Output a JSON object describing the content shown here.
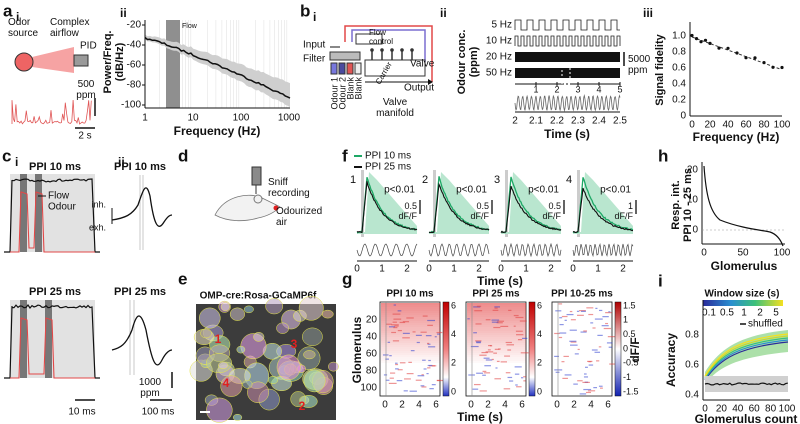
{
  "a": {
    "label": "a",
    "i": {
      "label": "i",
      "odor_source": "Odor source",
      "airflow": "Complex airflow",
      "pid": "PID",
      "scale_conc": "500 ppm",
      "scale_time": "2 s"
    },
    "ii": {
      "label": "ii",
      "y_axis": "Power/Freq. (dB/Hz)",
      "x_axis": "Frequency (Hz)",
      "yticks": [
        "-20",
        "-40",
        "-60",
        "-80",
        "-100"
      ],
      "xticks": [
        "1",
        "10",
        "100",
        "1000"
      ],
      "annotation": "Flow"
    }
  },
  "b": {
    "label": "b",
    "i": {
      "label": "i",
      "input": "Input",
      "filter": "Filter",
      "flow_control": "Flow control",
      "odours": [
        "Odour 1",
        "Odour 2",
        "Blank",
        "Blank"
      ],
      "carrier": "Carrier",
      "valve": "Valve",
      "output": "Output",
      "manifold": "Valve manifold"
    },
    "ii": {
      "label": "ii",
      "y_axis": "Odour conc. (ppm)",
      "rows": [
        "5 Hz",
        "10 Hz",
        "20 Hz",
        "50 Hz"
      ],
      "scale": "5000 ppm",
      "top_ticks": [
        "1",
        "2",
        "3",
        "4",
        "5"
      ],
      "xticks": [
        "2",
        "2.1",
        "2.2",
        "2.3",
        "2.4",
        "2.5"
      ],
      "x_axis": "Time (s)"
    },
    "iii": {
      "label": "iii",
      "y_axis": "Signal fidelity",
      "yticks": [
        "1.0",
        "0.8",
        "0.6",
        "0.4",
        "0.2",
        "0"
      ],
      "xticks": [
        "0",
        "20",
        "40",
        "60",
        "80",
        "100"
      ],
      "x_axis": "Frequency (Hz)"
    }
  },
  "c": {
    "label": "c",
    "i": {
      "label": "i",
      "top_title": "PPI 10 ms",
      "flow": "Flow",
      "odour": "Odour",
      "bottom_title": "PPI 25 ms",
      "scale_time": "10 ms"
    },
    "ii": {
      "label": "ii",
      "top_title": "PPI 10 ms",
      "inh": "inh.",
      "exh": "exh.",
      "bottom_title": "PPI 25 ms",
      "scale_conc": "1000 ppm",
      "scale_time": "100 ms"
    }
  },
  "d": {
    "label": "d",
    "sniff": "Sniff recording",
    "air": "Odourized air"
  },
  "e": {
    "label": "e",
    "title": "OMP-cre:Rosa-GCaMP6f",
    "rois": [
      "1",
      "2",
      "3",
      "4"
    ]
  },
  "f": {
    "label": "f",
    "legend": [
      "PPI 10 ms",
      "PPI 25 ms"
    ],
    "x_axis": "Time (s)",
    "plots": [
      {
        "number": "1",
        "p": "p<0.01",
        "scale": "0.5 dF/F",
        "xticks": [
          "0",
          "1",
          "2"
        ]
      },
      {
        "number": "2",
        "p": "p<0.01",
        "scale": "0.5 dF/F",
        "xticks": [
          "0",
          "1",
          "2"
        ]
      },
      {
        "number": "3",
        "p": "p<0.01",
        "scale": "0.5 dF/F",
        "xticks": [
          "0",
          "1",
          "2"
        ]
      },
      {
        "number": "4",
        "p": "p<0.01",
        "scale": "1 dF/F",
        "xticks": [
          "0",
          "1",
          "2"
        ]
      }
    ]
  },
  "g": {
    "label": "g",
    "titles": [
      "PPI 10 ms",
      "PPI 25 ms",
      "PPI 10-25 ms"
    ],
    "y_axis": "Glomerulus",
    "yticks": [
      "20",
      "40",
      "60",
      "80",
      "100"
    ],
    "xticks": [
      "0",
      "2",
      "4",
      "6"
    ],
    "colorbar_ticks": [
      [
        "6",
        "4",
        "2",
        "0"
      ],
      [
        "6",
        "4",
        "2",
        "0"
      ],
      [
        "1.5",
        "1",
        "0.5",
        "0",
        "-0.5",
        "-1",
        "-1.5"
      ]
    ],
    "colorbar_label": "dF/F",
    "x_axis": "Time (s)"
  },
  "h": {
    "label": "h",
    "y_axis": "Resp. int. PPI 10 - 25 ms",
    "yticks": [
      "20",
      "10",
      "0"
    ],
    "xticks": [
      "0",
      "50",
      "100"
    ],
    "x_axis": "Glomerulus"
  },
  "i": {
    "label": "i",
    "legend_title": "Window size (s)",
    "legend_ticks": [
      "0.1",
      "0.5",
      "1",
      "2",
      "5"
    ],
    "shuffled": "shuffled",
    "y_axis": "Accuracy",
    "yticks": [
      "0.8",
      "0.6",
      "0.4"
    ],
    "xticks": [
      "0",
      "20",
      "40",
      "60",
      "80",
      "100"
    ],
    "x_axis": "Glomerulus count"
  }
}
